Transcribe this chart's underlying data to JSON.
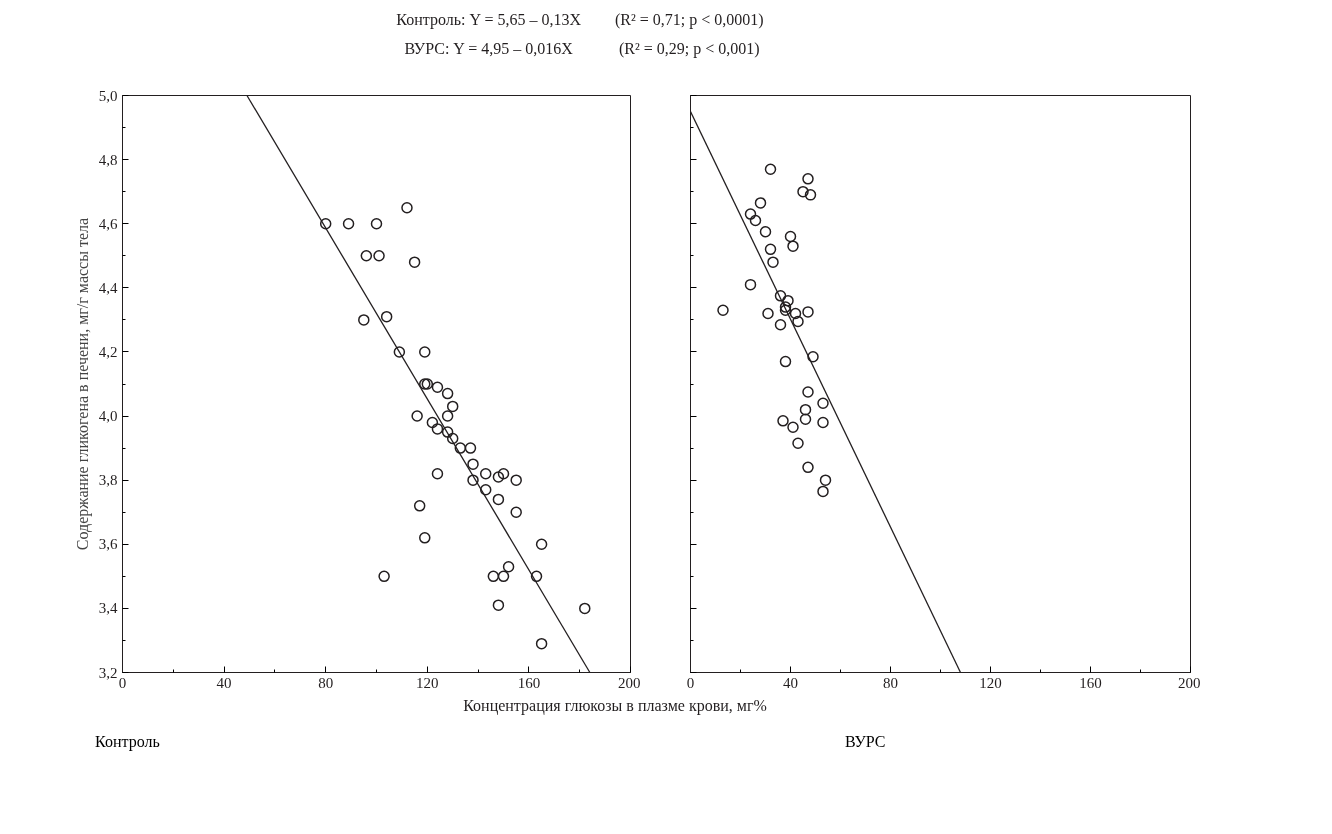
{
  "chart_data": [
    {
      "type": "scatter",
      "title": "Контроль",
      "ylabel": "Содержание гликогена в печени, мг/г массы тела",
      "xlabel": "Концентрация глюкозы в плазме крови, мг%",
      "annotations": [
        "Контроль: Y = 5,65 – 0,13X",
        "(R² = 0,71; p < 0,0001)",
        "ВУРС: Y = 4,95 – 0,016X",
        "(R² = 0,29; p < 0,001)"
      ],
      "xlim": [
        0,
        200
      ],
      "xticks": [
        0,
        40,
        80,
        120,
        160,
        200
      ],
      "ylim": [
        3.2,
        5.0
      ],
      "yticks": [
        {
          "value": 3.2,
          "label": "3,2"
        },
        {
          "value": 3.4,
          "label": "3,4"
        },
        {
          "value": 3.6,
          "label": "3,6"
        },
        {
          "value": 3.8,
          "label": "3,8"
        },
        {
          "value": 4.0,
          "label": "4,0"
        },
        {
          "value": 4.2,
          "label": "4,2"
        },
        {
          "value": 4.4,
          "label": "4,4"
        },
        {
          "value": 4.6,
          "label": "4,6"
        },
        {
          "value": 4.8,
          "label": "4,8"
        },
        {
          "value": 5.0,
          "label": "5,0"
        }
      ],
      "grid": false,
      "series": [
        {
          "marker": "circle",
          "color": "#231f20",
          "x": [
            80,
            89,
            100,
            112,
            96,
            101,
            95,
            104,
            115,
            109,
            119,
            119,
            120,
            124,
            128,
            130,
            116,
            128,
            122,
            124,
            128,
            130,
            133,
            137,
            138,
            138,
            143,
            143,
            148,
            150,
            155,
            124,
            148,
            117,
            155,
            119,
            165,
            103,
            146,
            150,
            152,
            163,
            148,
            182,
            165
          ],
          "values": [
            4.6,
            4.6,
            4.6,
            4.65,
            4.5,
            4.5,
            4.3,
            4.31,
            4.48,
            4.2,
            4.2,
            4.1,
            4.1,
            4.09,
            4.07,
            4.03,
            4.0,
            4.0,
            3.98,
            3.96,
            3.95,
            3.93,
            3.9,
            3.9,
            3.85,
            3.8,
            3.82,
            3.77,
            3.81,
            3.82,
            3.8,
            3.82,
            3.74,
            3.72,
            3.7,
            3.62,
            3.6,
            3.5,
            3.5,
            3.5,
            3.53,
            3.5,
            3.41,
            3.4,
            3.29
          ]
        },
        {
          "type": "line",
          "color": "#231f20",
          "x": [
            49,
            184
          ],
          "values": [
            5.0,
            3.2
          ]
        }
      ]
    },
    {
      "type": "scatter",
      "title": "ВУРС",
      "tick_labels": "x",
      "xlim": [
        0,
        200
      ],
      "xticks": [
        0,
        40,
        80,
        120,
        160,
        200
      ],
      "ylim": [
        3.2,
        5.0
      ],
      "grid": false,
      "series": [
        {
          "marker": "circle",
          "color": "#231f20",
          "x": [
            32,
            47,
            45,
            48,
            28,
            24,
            26,
            30,
            40,
            41,
            32,
            33,
            24,
            36,
            39,
            38,
            38,
            13,
            31,
            42,
            47,
            43,
            36,
            49,
            38,
            47,
            53,
            46,
            37,
            46,
            53,
            41,
            43,
            47,
            54,
            53
          ],
          "values": [
            4.77,
            4.74,
            4.7,
            4.69,
            4.665,
            4.63,
            4.61,
            4.575,
            4.56,
            4.53,
            4.52,
            4.48,
            4.41,
            4.375,
            4.36,
            4.34,
            4.33,
            4.33,
            4.32,
            4.32,
            4.325,
            4.295,
            4.285,
            4.185,
            4.17,
            4.075,
            4.04,
            4.02,
            3.985,
            3.99,
            3.98,
            3.965,
            3.915,
            3.84,
            3.8,
            3.765
          ]
        },
        {
          "type": "line",
          "color": "#231f20",
          "x": [
            0,
            108
          ],
          "values": [
            4.95,
            3.2
          ]
        }
      ]
    }
  ]
}
